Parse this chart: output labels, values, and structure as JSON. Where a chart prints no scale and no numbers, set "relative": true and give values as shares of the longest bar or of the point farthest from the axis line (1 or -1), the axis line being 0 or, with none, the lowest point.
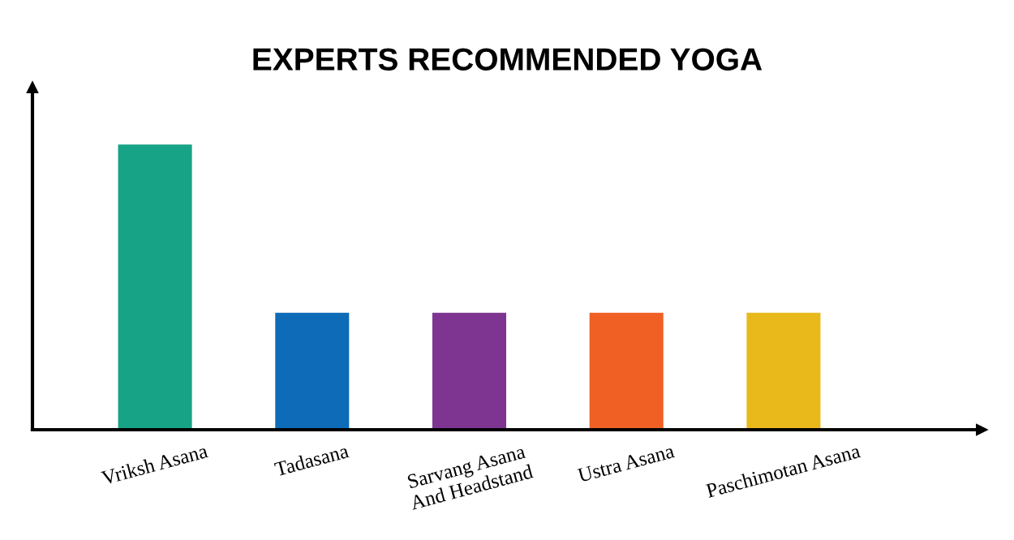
{
  "chart_data": {
    "type": "bar",
    "title": "EXPERTS RECOMMENDED YOGA",
    "relative": true,
    "categories": [
      "Vriksh Asana",
      "Tadasana",
      "Sarvang Asana\nAnd Headstand",
      "Ustra Asana",
      "Paschimotan Asana"
    ],
    "values": [
      1,
      0.41,
      0.41,
      0.41,
      0.41
    ],
    "colors": [
      "#17a385",
      "#0e6bb8",
      "#7e3592",
      "#f06024",
      "#e9b81b"
    ],
    "grid": false,
    "legend": false
  }
}
